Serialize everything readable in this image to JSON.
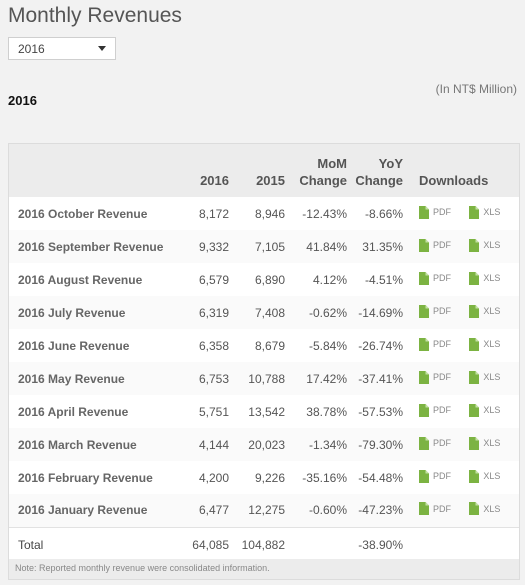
{
  "title": "Monthly Revenues",
  "year_select": {
    "value": "2016"
  },
  "unit_note": "(In NT$ Million)",
  "year_heading": "2016",
  "table": {
    "headers": {
      "label": "",
      "y2016": "2016",
      "y2015": "2015",
      "mom": "MoM Change",
      "yoy": "YoY Change",
      "downloads": "Downloads"
    },
    "download_labels": {
      "pdf": "PDF",
      "xls": "XLS"
    },
    "rows": [
      {
        "label": "2016 October Revenue",
        "y2016": "8,172",
        "y2015": "8,946",
        "mom": "-12.43%",
        "yoy": "-8.66%"
      },
      {
        "label": "2016 September Revenue",
        "y2016": "9,332",
        "y2015": "7,105",
        "mom": "41.84%",
        "yoy": "31.35%"
      },
      {
        "label": "2016 August Revenue",
        "y2016": "6,579",
        "y2015": "6,890",
        "mom": "4.12%",
        "yoy": "-4.51%"
      },
      {
        "label": "2016 July Revenue",
        "y2016": "6,319",
        "y2015": "7,408",
        "mom": "-0.62%",
        "yoy": "-14.69%"
      },
      {
        "label": "2016 June Revenue",
        "y2016": "6,358",
        "y2015": "8,679",
        "mom": "-5.84%",
        "yoy": "-26.74%"
      },
      {
        "label": "2016 May Revenue",
        "y2016": "6,753",
        "y2015": "10,788",
        "mom": "17.42%",
        "yoy": "-37.41%"
      },
      {
        "label": "2016 April Revenue",
        "y2016": "5,751",
        "y2015": "13,542",
        "mom": "38.78%",
        "yoy": "-57.53%"
      },
      {
        "label": "2016 March Revenue",
        "y2016": "4,144",
        "y2015": "20,023",
        "mom": "-1.34%",
        "yoy": "-79.30%"
      },
      {
        "label": "2016 February Revenue",
        "y2016": "4,200",
        "y2015": "9,226",
        "mom": "-35.16%",
        "yoy": "-54.48%"
      },
      {
        "label": "2016 January Revenue",
        "y2016": "6,477",
        "y2015": "12,275",
        "mom": "-0.60%",
        "yoy": "-47.23%"
      }
    ],
    "total": {
      "label": "Total",
      "y2016": "64,085",
      "y2015": "104,882",
      "mom": "",
      "yoy": "-38.90%"
    }
  },
  "footnote": "Note: Reported monthly revenue were consolidated information.",
  "colors": {
    "doc_icon": "#7cb342",
    "header_bg": "#ececec"
  },
  "icons": {
    "document": "file-icon",
    "select": "chevron-down-icon"
  }
}
